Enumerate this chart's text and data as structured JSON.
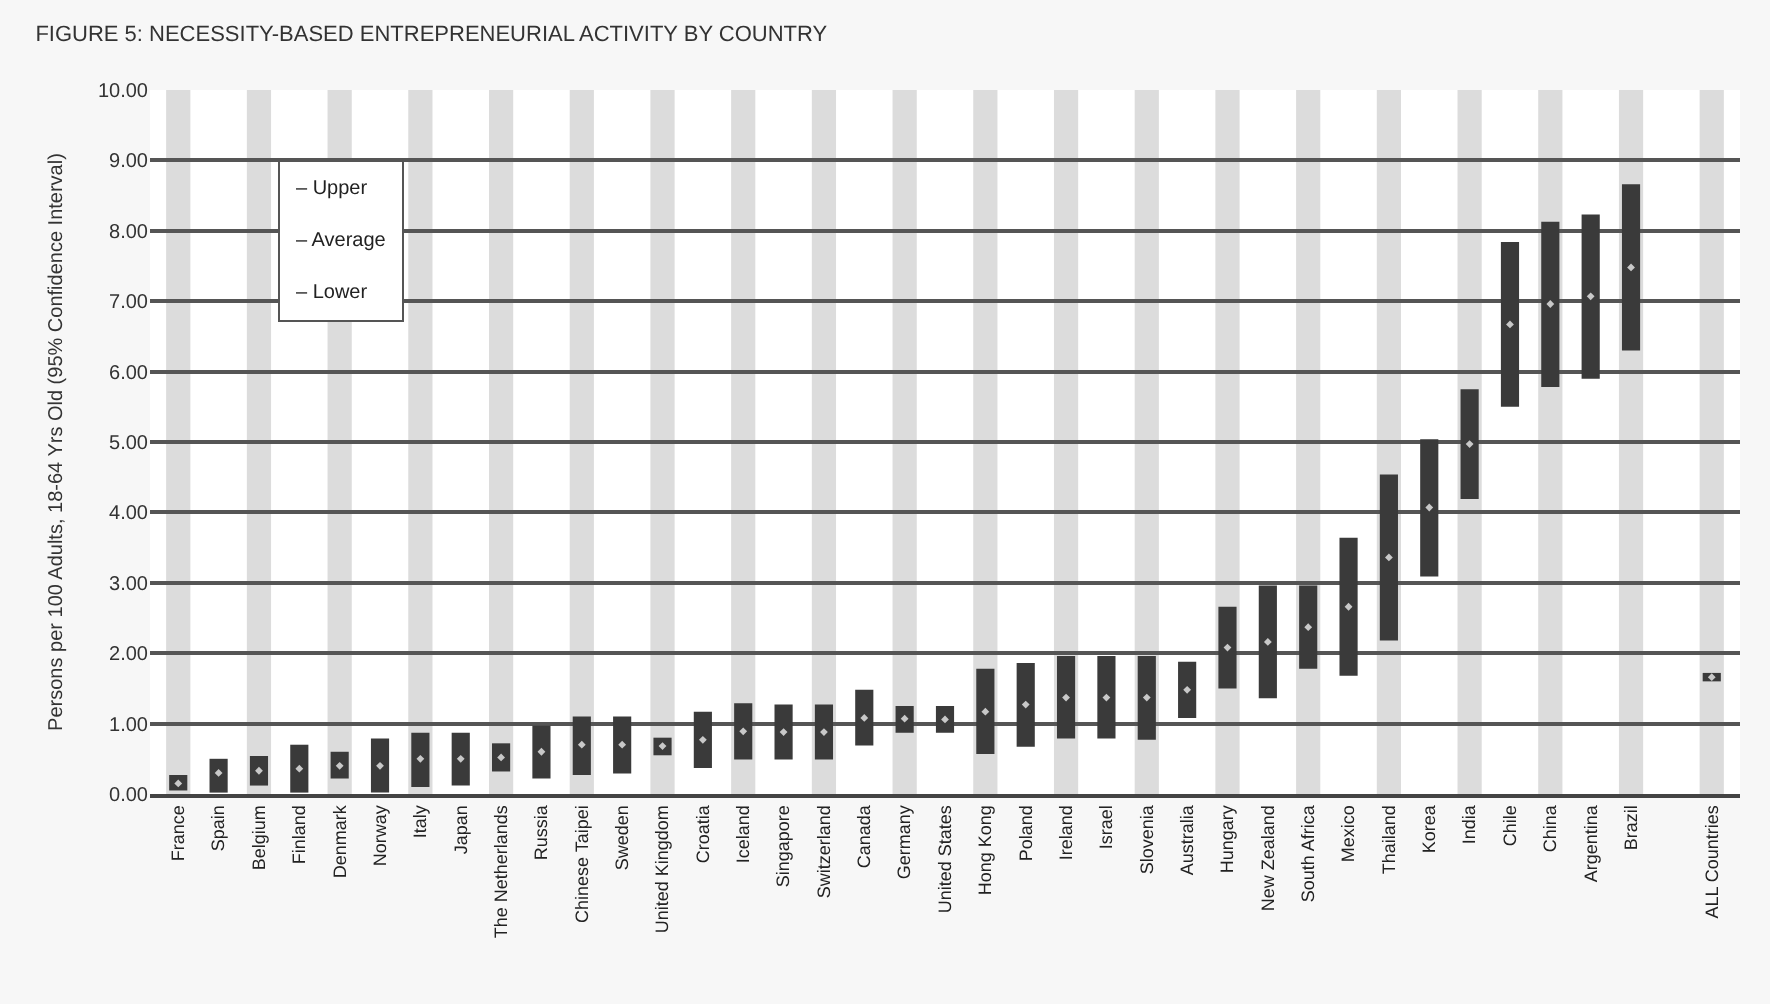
{
  "chart_data": {
    "type": "bar",
    "title": "FIGURE 5: NECESSITY-BASED ENTREPRENEURIAL ACTIVITY BY COUNTRY",
    "ylabel": "Persons per 100 Adults, 18-64 Yrs Old (95% Confidence Interval)",
    "categories": [
      "France",
      "Spain",
      "Belgium",
      "Finland",
      "Denmark",
      "Norway",
      "Italy",
      "Japan",
      "The Netherlands",
      "Russia",
      "Chinese Taipei",
      "Sweden",
      "United Kingdom",
      "Croatia",
      "Iceland",
      "Singapore",
      "Switzerland",
      "Canada",
      "Germany",
      "United States",
      "Hong Kong",
      "Poland",
      "Ireland",
      "Israel",
      "Slovenia",
      "Australia",
      "Hungary",
      "New Zealand",
      "South Africa",
      "Mexico",
      "Thailand",
      "Korea",
      "India",
      "Chile",
      "China",
      "Argentina",
      "Brazil",
      null,
      "ALL Countries"
    ],
    "series": [
      {
        "color": "#3a3a3a",
        "base": [
          0.05,
          0.02,
          0.12,
          0.02,
          0.22,
          0.02,
          0.1,
          0.12,
          0.32,
          0.22,
          0.27,
          0.29,
          0.55,
          0.37,
          0.49,
          0.49,
          0.49,
          0.69,
          0.87,
          0.87,
          0.57,
          0.67,
          0.79,
          0.79,
          0.77,
          1.08,
          1.5,
          1.36,
          1.78,
          1.68,
          2.18,
          3.09,
          4.19,
          5.5,
          5.78,
          5.9,
          6.3,
          null,
          1.6
        ],
        "values": [
          0.22,
          0.48,
          0.42,
          0.68,
          0.38,
          0.77,
          0.77,
          0.75,
          0.4,
          0.75,
          0.83,
          0.81,
          0.25,
          0.8,
          0.8,
          0.78,
          0.78,
          0.79,
          0.38,
          0.38,
          1.21,
          1.19,
          1.17,
          1.17,
          1.19,
          0.8,
          1.16,
          1.6,
          1.18,
          1.96,
          2.36,
          1.95,
          1.56,
          2.34,
          2.35,
          2.33,
          2.36,
          null,
          0.12
        ]
      },
      {
        "type": "scatter",
        "color": "#c8c8c8",
        "marker": "diamond",
        "values": [
          0.15,
          0.3,
          0.33,
          0.36,
          0.4,
          0.4,
          0.5,
          0.5,
          0.52,
          0.6,
          0.7,
          0.7,
          0.68,
          0.77,
          0.89,
          0.88,
          0.88,
          1.08,
          1.07,
          1.06,
          1.17,
          1.27,
          1.37,
          1.37,
          1.37,
          1.48,
          2.08,
          2.16,
          2.37,
          2.66,
          3.36,
          4.07,
          4.97,
          6.67,
          6.96,
          7.07,
          7.48,
          null,
          1.66
        ]
      }
    ],
    "ylim": [
      0,
      10
    ],
    "yticks": [
      {
        "value": 0,
        "label": "0.00"
      },
      {
        "value": 1,
        "label": "1.00"
      },
      {
        "value": 2,
        "label": "2.00"
      },
      {
        "value": 3,
        "label": "3.00"
      },
      {
        "value": 4,
        "label": "4.00"
      },
      {
        "value": 5,
        "label": "5.00"
      },
      {
        "value": 6,
        "label": "6.00"
      },
      {
        "value": 7,
        "label": "7.00"
      },
      {
        "value": 8,
        "label": "8.00"
      },
      {
        "value": 9,
        "label": "9.00"
      },
      {
        "value": 10,
        "label": "10.00"
      }
    ],
    "grid": "y",
    "annotations": [
      "– Upper",
      "– Average",
      "– Lower"
    ],
    "bands": [
      {
        "axis": "x",
        "from": "France",
        "to": "France",
        "color": "#dcdcdc"
      },
      {
        "axis": "x",
        "from": "Belgium",
        "to": "Belgium",
        "color": "#dcdcdc"
      },
      {
        "axis": "x",
        "from": "Denmark",
        "to": "Denmark",
        "color": "#dcdcdc"
      },
      {
        "axis": "x",
        "from": "Italy",
        "to": "Italy",
        "color": "#dcdcdc"
      },
      {
        "axis": "x",
        "from": "The Netherlands",
        "to": "The Netherlands",
        "color": "#dcdcdc"
      },
      {
        "axis": "x",
        "from": "Chinese Taipei",
        "to": "Chinese Taipei",
        "color": "#dcdcdc"
      },
      {
        "axis": "x",
        "from": "United Kingdom",
        "to": "United Kingdom",
        "color": "#dcdcdc"
      },
      {
        "axis": "x",
        "from": "Iceland",
        "to": "Iceland",
        "color": "#dcdcdc"
      },
      {
        "axis": "x",
        "from": "Switzerland",
        "to": "Switzerland",
        "color": "#dcdcdc"
      },
      {
        "axis": "x",
        "from": "Germany",
        "to": "Germany",
        "color": "#dcdcdc"
      },
      {
        "axis": "x",
        "from": "Hong Kong",
        "to": "Hong Kong",
        "color": "#dcdcdc"
      },
      {
        "axis": "x",
        "from": "Ireland",
        "to": "Ireland",
        "color": "#dcdcdc"
      },
      {
        "axis": "x",
        "from": "Slovenia",
        "to": "Slovenia",
        "color": "#dcdcdc"
      },
      {
        "axis": "x",
        "from": "Hungary",
        "to": "Hungary",
        "color": "#dcdcdc"
      },
      {
        "axis": "x",
        "from": "South Africa",
        "to": "South Africa",
        "color": "#dcdcdc"
      },
      {
        "axis": "x",
        "from": "Thailand",
        "to": "Thailand",
        "color": "#dcdcdc"
      },
      {
        "axis": "x",
        "from": "India",
        "to": "India",
        "color": "#dcdcdc"
      },
      {
        "axis": "x",
        "from": "China",
        "to": "China",
        "color": "#dcdcdc"
      },
      {
        "axis": "x",
        "from": "Brazil",
        "to": "Brazil",
        "color": "#dcdcdc"
      },
      {
        "axis": "x",
        "from": "ALL Countries",
        "to": "ALL Countries",
        "color": "#dcdcdc"
      }
    ]
  }
}
